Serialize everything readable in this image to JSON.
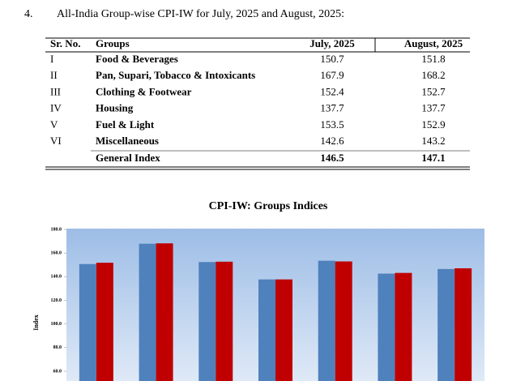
{
  "heading": {
    "number": "4.",
    "title": "All-India Group-wise CPI-IW for July, 2025 and August, 2025:"
  },
  "table": {
    "columns": [
      "Sr. No.",
      "Groups",
      "July, 2025",
      "August, 2025"
    ],
    "rows": [
      [
        "I",
        "Food & Beverages",
        "150.7",
        "151.8"
      ],
      [
        "II",
        "Pan, Supari, Tobacco & Intoxicants",
        "167.9",
        "168.2"
      ],
      [
        "III",
        "Clothing & Footwear",
        "152.4",
        "152.7"
      ],
      [
        "IV",
        "Housing",
        "137.7",
        "137.7"
      ],
      [
        "V",
        "Fuel & Light",
        "153.5",
        "152.9"
      ],
      [
        "VI",
        "Miscellaneous",
        "142.6",
        "143.2"
      ]
    ],
    "total": {
      "label": "General Index",
      "values": [
        "146.5",
        "147.1"
      ]
    }
  },
  "chart_data": {
    "type": "bar",
    "title": "CPI-IW: Groups Indices",
    "y_label": "Index",
    "categories": [
      null,
      null,
      null,
      null,
      null,
      null,
      null
    ],
    "series": [
      {
        "color": "#4f81bd",
        "values": [
          150.7,
          167.9,
          152.4,
          137.7,
          153.5,
          142.6,
          146.5
        ]
      },
      {
        "color": "#c00000",
        "values": [
          151.8,
          168.2,
          152.7,
          137.7,
          152.9,
          143.2,
          147.1
        ]
      }
    ],
    "ylim": [
      60,
      180
    ],
    "yticks": [
      {
        "value": 60,
        "label": "60.0"
      },
      {
        "value": 80,
        "label": "80.0"
      },
      {
        "value": 100,
        "label": "100.0"
      },
      {
        "value": 120,
        "label": "120.0"
      },
      {
        "value": 140,
        "label": "140.0"
      },
      {
        "value": 160,
        "label": "160.0"
      },
      {
        "value": 180,
        "label": "180.0"
      }
    ]
  }
}
